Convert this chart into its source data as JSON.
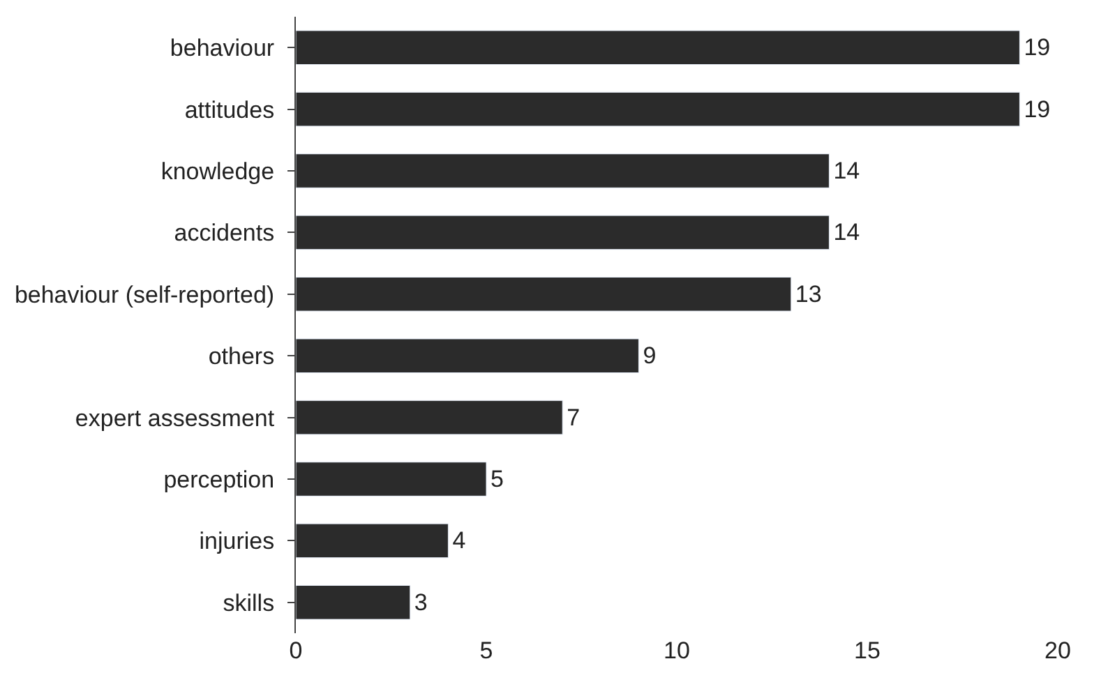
{
  "chart_data": {
    "type": "bar",
    "orientation": "horizontal",
    "categories": [
      "behaviour",
      "attitudes",
      "knowledge",
      "accidents",
      "behaviour (self-reported)",
      "others",
      "expert assessment",
      "perception",
      "injuries",
      "skills"
    ],
    "values": [
      19,
      19,
      14,
      14,
      13,
      9,
      7,
      5,
      4,
      3
    ],
    "color": "#2b2b2b",
    "xlim": [
      0,
      20
    ],
    "xticks": [
      0,
      5,
      10,
      15,
      20
    ],
    "data_labels": true
  }
}
